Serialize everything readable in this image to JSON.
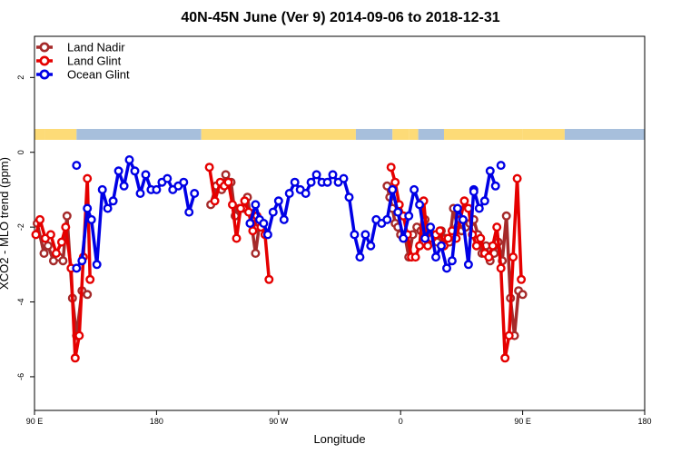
{
  "chart_data": {
    "type": "line",
    "title": "40N-45N June (Ver 9)   2014-09-06 to 2018-12-31",
    "xlabel": "Longitude",
    "ylabel": "XCO2 - MLO trend (ppm)",
    "x_ticks": [
      {
        "value": 90,
        "label": "90 E"
      },
      {
        "value": 180,
        "label": "180"
      },
      {
        "value": 270,
        "label": "90 W"
      },
      {
        "value": 360,
        "label": "0"
      },
      {
        "value": 450,
        "label": "90 E"
      },
      {
        "value": 540,
        "label": "180"
      }
    ],
    "y_ticks": [
      {
        "value": -6,
        "label": "-6"
      },
      {
        "value": -4,
        "label": "-4"
      },
      {
        "value": -2,
        "label": "-2"
      },
      {
        "value": 0,
        "label": "0"
      },
      {
        "value": 2,
        "label": "2"
      }
    ],
    "xlim": [
      90,
      540
    ],
    "ylim": [
      -6.9,
      3.1
    ],
    "legend_position": "top-left",
    "colors": {
      "land_mask": "#fddb77",
      "ocean_mask": "#a7bfdc"
    },
    "land_ocean_mask": [
      {
        "start": 90,
        "end": 98,
        "type": "land"
      },
      {
        "start": 98,
        "end": 121,
        "type": "land"
      },
      {
        "start": 121,
        "end": 213,
        "type": "ocean"
      },
      {
        "start": 213,
        "end": 327,
        "type": "land"
      },
      {
        "start": 327,
        "end": 354,
        "type": "ocean"
      },
      {
        "start": 354,
        "end": 366,
        "type": "land"
      },
      {
        "start": 366,
        "end": 373,
        "type": "land"
      },
      {
        "start": 373,
        "end": 392,
        "type": "ocean"
      },
      {
        "start": 392,
        "end": 450,
        "type": "land"
      },
      {
        "start": 450,
        "end": 481,
        "type": "land"
      },
      {
        "start": 481,
        "end": 540,
        "type": "ocean"
      }
    ],
    "series": [
      {
        "name": "Land Nadir",
        "color": "#a52a2a",
        "segments": [
          [
            [
              92,
              -1.9
            ],
            [
              97,
              -2.7
            ],
            [
              100,
              -2.5
            ],
            [
              104,
              -2.9
            ],
            [
              108,
              -2.8
            ],
            [
              111,
              -2.9
            ],
            [
              114,
              -1.7
            ],
            [
              118,
              -3.9
            ],
            [
              121,
              -4.9
            ],
            [
              125,
              -3.7
            ],
            [
              129,
              -3.8
            ]
          ],
          [
            [
              220,
              -1.4
            ],
            [
              224,
              -0.9
            ],
            [
              228,
              -1.0
            ],
            [
              231,
              -0.6
            ],
            [
              235,
              -0.8
            ],
            [
              238,
              -1.7
            ],
            [
              241,
              -1.5
            ],
            [
              244,
              -1.5
            ],
            [
              247,
              -1.2
            ],
            [
              250,
              -1.9
            ],
            [
              253,
              -2.7
            ],
            [
              256,
              -1.9
            ]
          ],
          [
            [
              350,
              -0.9
            ],
            [
              352,
              -1.2
            ],
            [
              354,
              -1.5
            ],
            [
              356,
              -1.9
            ],
            [
              358,
              -2.0
            ],
            [
              360,
              -2.2
            ],
            [
              363,
              -2.2
            ],
            [
              366,
              -2.8
            ],
            [
              369,
              -2.2
            ],
            [
              372,
              -2.0
            ],
            [
              375,
              -2.1
            ],
            [
              378,
              -1.8
            ],
            [
              381,
              -2.1
            ],
            [
              384,
              -2.2
            ],
            [
              387,
              -2.4
            ],
            [
              390,
              -2.1
            ],
            [
              393,
              -2.3
            ],
            [
              396,
              -2.4
            ],
            [
              399,
              -1.5
            ],
            [
              402,
              -2.0
            ],
            [
              405,
              -2.1
            ],
            [
              408,
              -2.0
            ],
            [
              411,
              -1.9
            ],
            [
              414,
              -1.8
            ],
            [
              417,
              -2.2
            ],
            [
              420,
              -2.7
            ],
            [
              423,
              -2.5
            ],
            [
              426,
              -2.9
            ],
            [
              429,
              -2.7
            ],
            [
              432,
              -2.4
            ],
            [
              435,
              -2.9
            ],
            [
              438,
              -1.7
            ],
            [
              441,
              -3.9
            ],
            [
              444,
              -4.9
            ],
            [
              447,
              -3.7
            ],
            [
              450,
              -3.8
            ]
          ]
        ]
      },
      {
        "name": "Land Glint",
        "color": "#e50000",
        "segments": [
          [
            [
              91,
              -2.2
            ],
            [
              94,
              -1.8
            ],
            [
              98,
              -2.3
            ],
            [
              102,
              -2.2
            ],
            [
              106,
              -2.7
            ],
            [
              110,
              -2.4
            ],
            [
              113,
              -2.0
            ],
            [
              117,
              -3.1
            ],
            [
              120,
              -5.5
            ],
            [
              123,
              -4.9
            ],
            [
              126,
              -2.8
            ],
            [
              129,
              -0.7
            ],
            [
              131,
              -3.4
            ]
          ],
          [
            [
              219,
              -0.4
            ],
            [
              223,
              -1.3
            ],
            [
              227,
              -0.8
            ],
            [
              230,
              -0.9
            ],
            [
              233,
              -0.8
            ],
            [
              236,
              -1.4
            ],
            [
              239,
              -2.3
            ],
            [
              242,
              -1.5
            ],
            [
              245,
              -1.3
            ],
            [
              248,
              -1.6
            ],
            [
              251,
              -2.1
            ],
            [
              254,
              -1.7
            ],
            [
              257,
              -2.0
            ],
            [
              260,
              -2.2
            ],
            [
              263,
              -3.4
            ]
          ],
          [
            [
              353,
              -0.4
            ],
            [
              356,
              -0.8
            ],
            [
              359,
              -1.4
            ],
            [
              362,
              -1.7
            ],
            [
              365,
              -2.2
            ],
            [
              368,
              -2.8
            ],
            [
              371,
              -2.8
            ],
            [
              374,
              -2.5
            ],
            [
              377,
              -1.3
            ],
            [
              380,
              -2.5
            ],
            [
              383,
              -2.3
            ],
            [
              386,
              -2.2
            ],
            [
              389,
              -2.1
            ],
            [
              392,
              -2.5
            ],
            [
              395,
              -2.3
            ],
            [
              398,
              -2.1
            ],
            [
              401,
              -2.3
            ],
            [
              404,
              -1.8
            ],
            [
              407,
              -1.3
            ],
            [
              410,
              -1.5
            ],
            [
              413,
              -2.2
            ],
            [
              416,
              -2.5
            ],
            [
              419,
              -2.3
            ],
            [
              422,
              -2.7
            ],
            [
              425,
              -2.8
            ],
            [
              428,
              -2.5
            ],
            [
              431,
              -2.0
            ],
            [
              434,
              -3.1
            ],
            [
              437,
              -5.5
            ],
            [
              440,
              -4.9
            ],
            [
              443,
              -2.8
            ],
            [
              446,
              -0.7
            ],
            [
              449,
              -3.4
            ]
          ]
        ]
      },
      {
        "name": "Ocean Glint",
        "color": "#0000e5",
        "segments": [
          [
            [
              121,
              -3.1
            ],
            [
              125,
              -2.9
            ],
            [
              129,
              -1.5
            ],
            [
              132,
              -1.8
            ],
            [
              136,
              -3.0
            ],
            [
              140,
              -1.0
            ],
            [
              144,
              -1.5
            ],
            [
              148,
              -1.3
            ],
            [
              152,
              -0.5
            ],
            [
              156,
              -0.9
            ],
            [
              160,
              -0.2
            ],
            [
              164,
              -0.5
            ],
            [
              168,
              -1.1
            ],
            [
              172,
              -0.6
            ],
            [
              176,
              -1.0
            ],
            [
              180,
              -1.0
            ],
            [
              184,
              -0.8
            ],
            [
              188,
              -0.7
            ],
            [
              192,
              -1.0
            ],
            [
              196,
              -0.9
            ],
            [
              200,
              -0.8
            ],
            [
              204,
              -1.6
            ],
            [
              208,
              -1.1
            ]
          ],
          [
            [
              249,
              -1.9
            ],
            [
              253,
              -1.4
            ],
            [
              256,
              -1.8
            ],
            [
              259,
              -1.9
            ],
            [
              262,
              -2.2
            ],
            [
              266,
              -1.6
            ],
            [
              270,
              -1.3
            ],
            [
              274,
              -1.8
            ],
            [
              278,
              -1.1
            ],
            [
              282,
              -0.8
            ],
            [
              286,
              -1.0
            ],
            [
              290,
              -1.1
            ],
            [
              294,
              -0.8
            ],
            [
              298,
              -0.6
            ],
            [
              302,
              -0.8
            ],
            [
              306,
              -0.8
            ],
            [
              310,
              -0.6
            ],
            [
              314,
              -0.8
            ],
            [
              318,
              -0.7
            ],
            [
              322,
              -1.2
            ],
            [
              326,
              -2.2
            ],
            [
              330,
              -2.8
            ],
            [
              334,
              -2.2
            ],
            [
              338,
              -2.5
            ],
            [
              342,
              -1.8
            ],
            [
              346,
              -1.9
            ],
            [
              350,
              -1.8
            ],
            [
              354,
              -1.0
            ],
            [
              358,
              -1.6
            ],
            [
              362,
              -2.3
            ],
            [
              366,
              -1.7
            ],
            [
              370,
              -1.0
            ],
            [
              374,
              -1.4
            ],
            [
              378,
              -2.3
            ],
            [
              382,
              -2.0
            ],
            [
              386,
              -2.8
            ],
            [
              390,
              -2.5
            ],
            [
              394,
              -3.1
            ],
            [
              398,
              -2.9
            ],
            [
              402,
              -1.5
            ],
            [
              406,
              -1.8
            ],
            [
              410,
              -3.0
            ],
            [
              414,
              -1.0
            ],
            [
              418,
              -1.5
            ],
            [
              422,
              -1.3
            ],
            [
              426,
              -0.5
            ],
            [
              430,
              -0.9
            ]
          ]
        ]
      }
    ],
    "isolated_points": [
      {
        "series": "Ocean Glint",
        "x": 121,
        "y": -0.35
      },
      {
        "series": "Ocean Glint",
        "x": 434,
        "y": -0.35
      },
      {
        "series": "Ocean Glint",
        "x": 414,
        "y": -1.05
      }
    ]
  }
}
